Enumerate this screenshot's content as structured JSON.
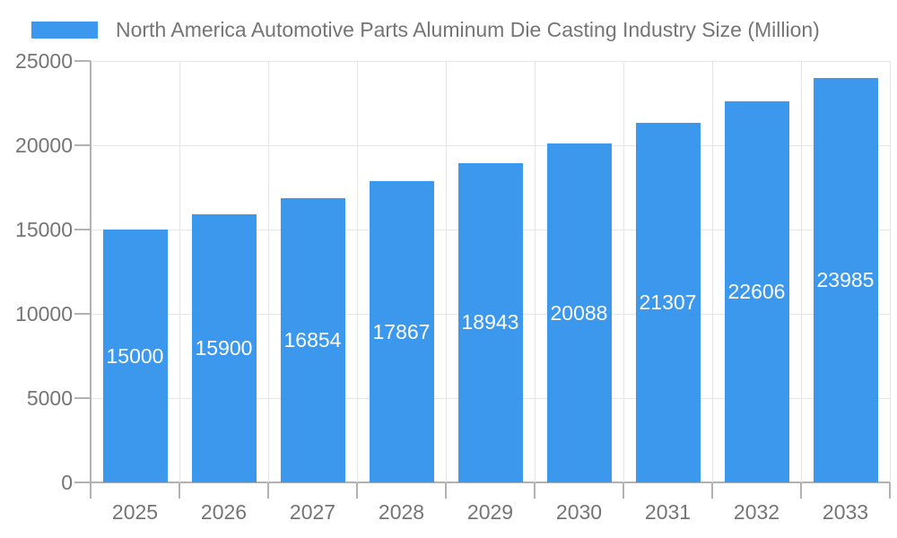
{
  "chart_data": {
    "type": "bar",
    "title": "North America Automotive Parts Aluminum Die Casting Industry Size (Million)",
    "series_name": "North America Automotive Parts Aluminum Die Casting Industry Size (Million)",
    "categories": [
      "2025",
      "2026",
      "2027",
      "2028",
      "2029",
      "2030",
      "2031",
      "2032",
      "2033"
    ],
    "values": [
      15000,
      15900,
      16854,
      17867,
      18943,
      20088,
      21307,
      22606,
      23985
    ],
    "value_labels": [
      "15000",
      "15900",
      "16854",
      "17867",
      "18943",
      "20088",
      "21307",
      "22606",
      "23985"
    ],
    "xlabel": "",
    "ylabel": "",
    "ylim": [
      0,
      25000
    ],
    "yticks": [
      0,
      5000,
      10000,
      15000,
      20000,
      25000
    ],
    "grid": true,
    "legend_position": "top-left",
    "colors": {
      "bar": "#3B98EC",
      "value_label": "#ffffff",
      "text": "#757575",
      "gridline": "#e6e6e6",
      "axis_line": "#b2b2b2",
      "background": "#ffffff"
    }
  }
}
